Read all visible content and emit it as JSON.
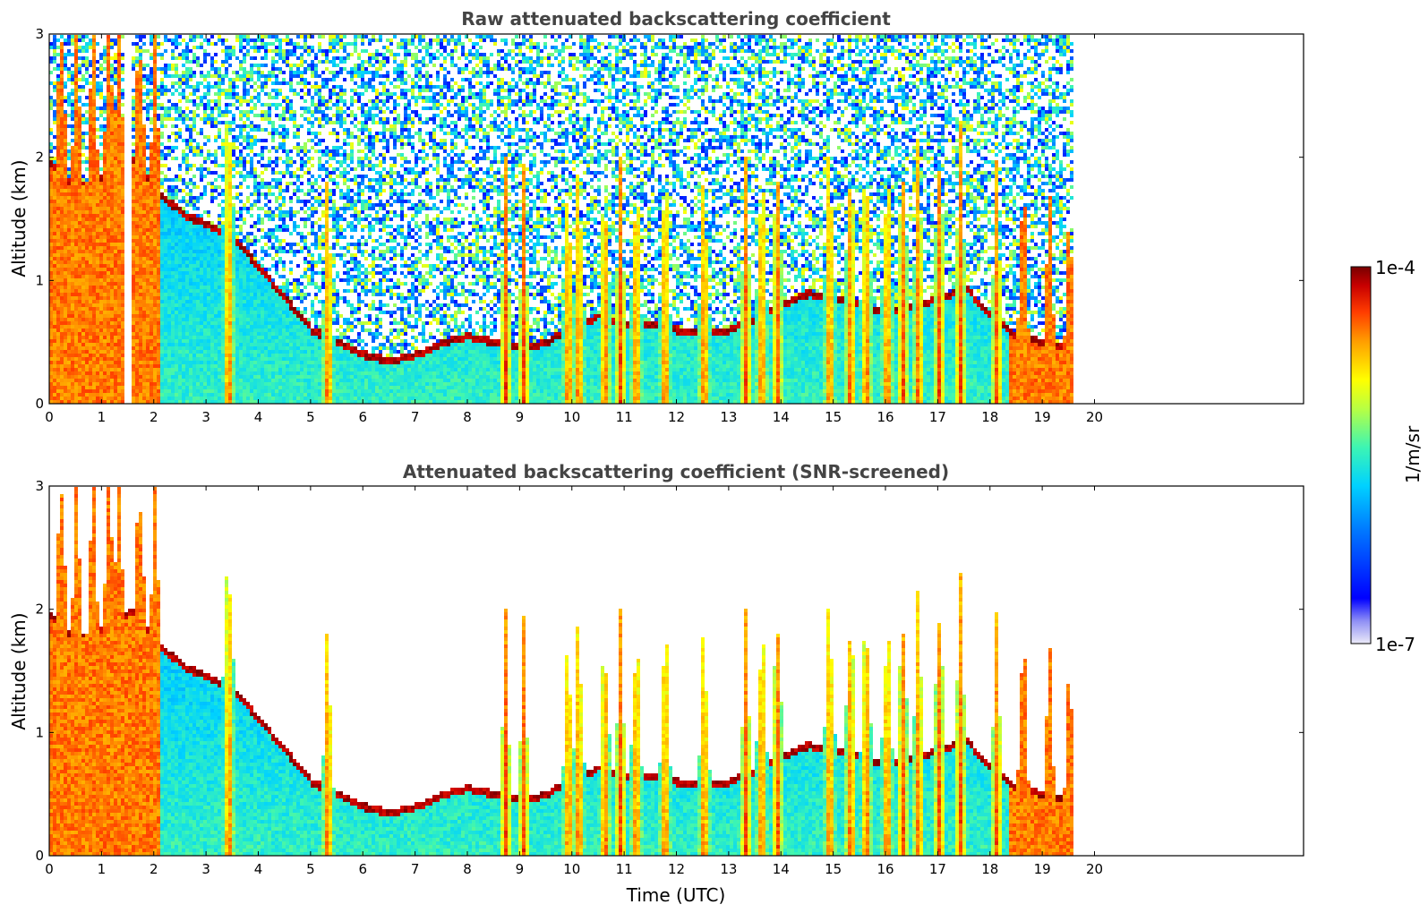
{
  "chart_data": [
    {
      "type": "heatmap",
      "title": "Raw attenuated backscattering coefficient",
      "xlabel": "",
      "ylabel": "Altitude (km)",
      "xlim": [
        0,
        24
      ],
      "ylim": [
        0,
        3
      ],
      "xticks": [
        "0",
        "1",
        "2",
        "3",
        "4",
        "5",
        "6",
        "7",
        "8",
        "9",
        "10",
        "11",
        "12",
        "13",
        "14",
        "15",
        "16",
        "17",
        "18",
        "19",
        "20"
      ],
      "yticks": [
        "0",
        "1",
        "2",
        "3"
      ],
      "data_extent_hours": 19.6,
      "gap_hours": [
        1.42,
        1.53
      ],
      "colorscale": "jet",
      "layers": {
        "boundary_layer_top_km": [
          [
            0,
            1.9
          ],
          [
            0.5,
            1.7
          ],
          [
            1,
            1.8
          ],
          [
            1.6,
            1.95
          ],
          [
            2,
            1.7
          ],
          [
            2.5,
            1.5
          ],
          [
            3,
            1.4
          ],
          [
            3.5,
            1.3
          ],
          [
            4,
            1.05
          ],
          [
            4.5,
            0.8
          ],
          [
            5,
            0.55
          ],
          [
            5.5,
            0.45
          ],
          [
            6,
            0.35
          ],
          [
            6.5,
            0.3
          ],
          [
            7,
            0.35
          ],
          [
            7.5,
            0.45
          ],
          [
            8,
            0.5
          ],
          [
            8.5,
            0.45
          ],
          [
            9,
            0.4
          ],
          [
            9.5,
            0.45
          ],
          [
            10,
            0.6
          ],
          [
            10.5,
            0.65
          ],
          [
            11,
            0.6
          ],
          [
            11.5,
            0.6
          ],
          [
            12,
            0.55
          ],
          [
            13,
            0.55
          ],
          [
            14,
            0.75
          ],
          [
            14.5,
            0.85
          ],
          [
            15,
            0.8
          ],
          [
            15.5,
            0.75
          ],
          [
            16,
            0.7
          ],
          [
            16.5,
            0.75
          ],
          [
            17,
            0.8
          ],
          [
            17.5,
            0.9
          ],
          [
            18,
            0.65
          ],
          [
            18.5,
            0.5
          ],
          [
            19,
            0.45
          ],
          [
            19.6,
            0.4
          ]
        ]
      }
    },
    {
      "type": "heatmap",
      "title": "Attenuated backscattering coefficient (SNR-screened)",
      "xlabel": "Time (UTC)",
      "ylabel": "Altitude (km)",
      "xlim": [
        0,
        24
      ],
      "ylim": [
        0,
        3
      ],
      "xticks": [
        "0",
        "1",
        "2",
        "3",
        "4",
        "5",
        "6",
        "7",
        "8",
        "9",
        "10",
        "11",
        "12",
        "13",
        "14",
        "15",
        "16",
        "17",
        "18",
        "19",
        "20"
      ],
      "yticks": [
        "0",
        "1",
        "2",
        "3"
      ],
      "data_extent_hours": 19.6,
      "colorscale": "jet"
    }
  ],
  "colorbar": {
    "label": "1/m/sr",
    "max_label": "1e-4",
    "min_label": "1e-7",
    "scale": "log",
    "colors": [
      "#e6e6ff",
      "#0000ff",
      "#00aaff",
      "#00e6c8",
      "#aaff55",
      "#ffff00",
      "#ffaa00",
      "#ff4000",
      "#b40000",
      "#7a0000"
    ]
  }
}
